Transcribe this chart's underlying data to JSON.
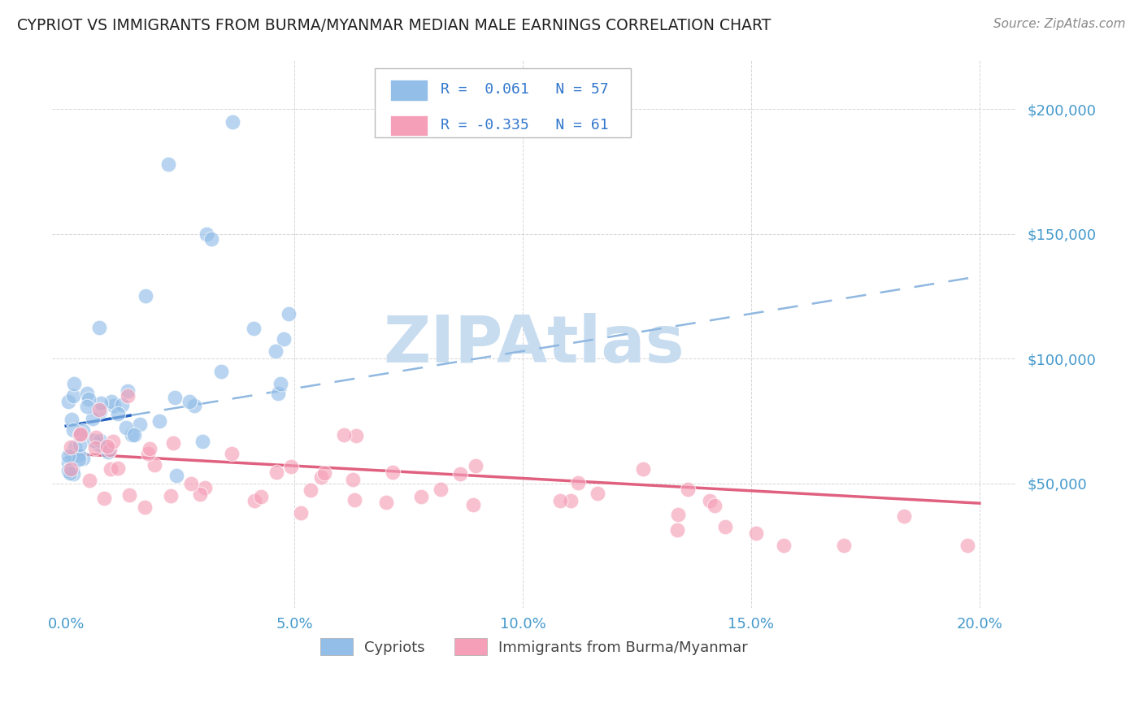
{
  "title": "CYPRIOT VS IMMIGRANTS FROM BURMA/MYANMAR MEDIAN MALE EARNINGS CORRELATION CHART",
  "source": "Source: ZipAtlas.com",
  "xlabel_ticks": [
    "0.0%",
    "5.0%",
    "10.0%",
    "15.0%",
    "20.0%"
  ],
  "xlabel_tick_vals": [
    0.0,
    0.05,
    0.1,
    0.15,
    0.2
  ],
  "ylabel_ticks": [
    0,
    50000,
    100000,
    150000,
    200000
  ],
  "ylabel_labels": [
    "",
    "$50,000",
    "$100,000",
    "$150,000",
    "$200,000"
  ],
  "ylim": [
    0,
    220000
  ],
  "xlim": [
    -0.003,
    0.208
  ],
  "series1_label": "Cypriots",
  "series1_R": 0.061,
  "series1_N": 57,
  "series1_color": "#92BEE8",
  "series1_trend_color": "#2060C0",
  "series1_trend_ext_color": "#90B8E0",
  "series2_label": "Immigrants from Burma/Myanmar",
  "series2_R": -0.335,
  "series2_N": 61,
  "series2_color": "#F5A0B8",
  "series2_trend_color": "#E06080",
  "background_color": "#FFFFFF",
  "grid_color": "#BBBBBB",
  "watermark": "ZIPAtlas",
  "watermark_color": "#C8DCF0",
  "legend_color": "#3377CC",
  "title_color": "#222222",
  "axis_label_color": "#444444",
  "tick_color": "#4499CC"
}
